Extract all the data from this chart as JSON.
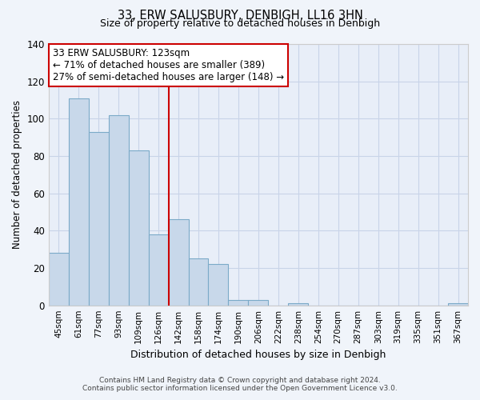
{
  "title": "33, ERW SALUSBURY, DENBIGH, LL16 3HN",
  "subtitle": "Size of property relative to detached houses in Denbigh",
  "xlabel": "Distribution of detached houses by size in Denbigh",
  "ylabel": "Number of detached properties",
  "bar_labels": [
    "45sqm",
    "61sqm",
    "77sqm",
    "93sqm",
    "109sqm",
    "126sqm",
    "142sqm",
    "158sqm",
    "174sqm",
    "190sqm",
    "206sqm",
    "222sqm",
    "238sqm",
    "254sqm",
    "270sqm",
    "287sqm",
    "303sqm",
    "319sqm",
    "335sqm",
    "351sqm",
    "367sqm"
  ],
  "bar_values": [
    28,
    111,
    93,
    102,
    83,
    38,
    46,
    25,
    22,
    3,
    3,
    0,
    1,
    0,
    0,
    0,
    0,
    0,
    0,
    0,
    1
  ],
  "bar_color": "#c8d8ea",
  "bar_edge_color": "#7baac8",
  "vline_x": 5.5,
  "vline_color": "#cc0000",
  "ylim": [
    0,
    140
  ],
  "yticks": [
    0,
    20,
    40,
    60,
    80,
    100,
    120,
    140
  ],
  "annotation_line1": "33 ERW SALUSBURY: 123sqm",
  "annotation_line2": "← 71% of detached houses are smaller (389)",
  "annotation_line3": "27% of semi-detached houses are larger (148) →",
  "footer_line1": "Contains HM Land Registry data © Crown copyright and database right 2024.",
  "footer_line2": "Contains public sector information licensed under the Open Government Licence v3.0.",
  "bg_color": "#f0f4fa",
  "plot_bg_color": "#e8eef8",
  "grid_color": "#c8d4e8"
}
